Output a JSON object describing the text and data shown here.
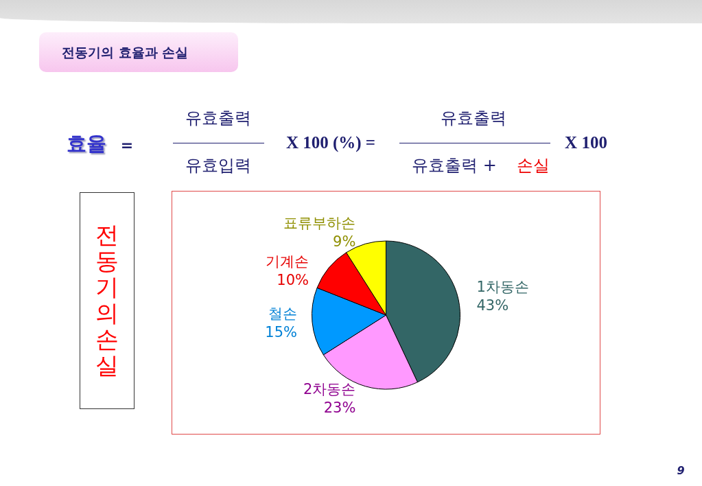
{
  "chart_data": {
    "type": "pie",
    "title": "전동기의 효율과 손실",
    "subtitle": "전동기의 손실",
    "categories": [
      "1차동손",
      "2차동손",
      "철손",
      "기계손",
      "표류부하손"
    ],
    "values": [
      43,
      23,
      15,
      10,
      9
    ],
    "value_labels": [
      "43%",
      "23%",
      "15%",
      "10%",
      "9%"
    ],
    "colors": [
      "#336666",
      "#ff99ff",
      "#0099ff",
      "#ff0000",
      "#ffff00"
    ],
    "annotations": [
      "효율",
      "=",
      "유효출력",
      "유효입력",
      "X 100 (%) =",
      "유효출력",
      "유효출력 +",
      "손실",
      "X 100",
      "9"
    ]
  }
}
